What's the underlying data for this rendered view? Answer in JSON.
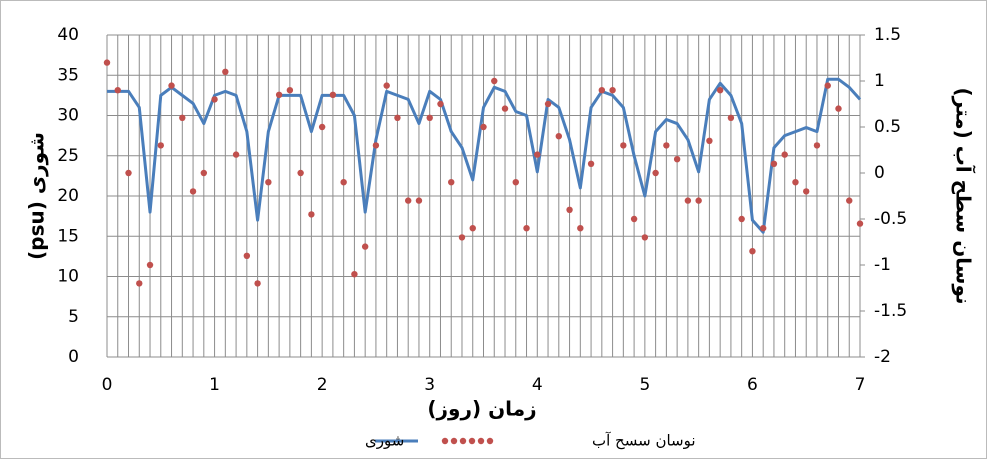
{
  "chart_data": {
    "type": "line",
    "y_label": "شوری (psu)",
    "y2_label": "نوسان سطح آب (متر)",
    "x_label": "زمان (روز)",
    "x": [
      0,
      0.1,
      0.2,
      0.3,
      0.4,
      0.5,
      0.6,
      0.7,
      0.8,
      0.9,
      1,
      1.1,
      1.2,
      1.3,
      1.4,
      1.5,
      1.6,
      1.7,
      1.8,
      1.9,
      2,
      2.1,
      2.2,
      2.3,
      2.4,
      2.5,
      2.6,
      2.7,
      2.8,
      2.9,
      3,
      3.1,
      3.2,
      3.3,
      3.4,
      3.5,
      3.6,
      3.7,
      3.8,
      3.9,
      4,
      4.1,
      4.2,
      4.3,
      4.4,
      4.5,
      4.6,
      4.7,
      4.8,
      4.9,
      5,
      5.1,
      5.2,
      5.3,
      5.4,
      5.5,
      5.6,
      5.7,
      5.8,
      5.9,
      6,
      6.1,
      6.2,
      6.3,
      6.4,
      6.5,
      6.6,
      6.7,
      6.8,
      6.9,
      7
    ],
    "series": [
      {
        "name": "شوری",
        "color": "#4a7ebb",
        "style": "line",
        "values": [
          33,
          33,
          33,
          31,
          18,
          32.5,
          33.5,
          32.5,
          31.5,
          29,
          32.5,
          33,
          32.5,
          28,
          17,
          28,
          32.5,
          32.5,
          32.5,
          28,
          32.5,
          32.5,
          32.5,
          30,
          18,
          27,
          33,
          32.5,
          32,
          29,
          33,
          32,
          28,
          26,
          22,
          31,
          33.5,
          33,
          30.5,
          30,
          23,
          32,
          31,
          27,
          21,
          31,
          33,
          32.5,
          31,
          25,
          20,
          28,
          29.5,
          29,
          27,
          23,
          32,
          34,
          32.5,
          29,
          17,
          15.5,
          26,
          27.5,
          28,
          28.5,
          28,
          34.5,
          34.5,
          33.5,
          32
        ]
      },
      {
        "name": "نوسان سسح آب",
        "color": "#c0504d",
        "style": "dots",
        "axis": "y2",
        "values": [
          1.2,
          0.9,
          0,
          -1.2,
          -1,
          0.3,
          0.95,
          0.6,
          -0.2,
          0,
          0.8,
          1.1,
          0.2,
          -0.9,
          -1.2,
          -0.1,
          0.85,
          0.9,
          0,
          -0.45,
          0.5,
          0.85,
          -0.1,
          -1.1,
          -0.8,
          0.3,
          0.95,
          0.6,
          -0.3,
          -0.3,
          0.6,
          0.75,
          -0.1,
          -0.7,
          -0.6,
          0.5,
          1,
          0.7,
          -0.1,
          -0.6,
          0.2,
          0.75,
          0.4,
          -0.4,
          -0.6,
          0.1,
          0.9,
          0.9,
          0.3,
          -0.5,
          -0.7,
          0,
          0.3,
          0.15,
          -0.3,
          -0.3,
          0.35,
          0.9,
          0.6,
          -0.5,
          -0.85,
          -0.6,
          0.1,
          0.2,
          -0.1,
          -0.2,
          0.3,
          0.95,
          0.7,
          -0.3,
          -0.55
        ]
      }
    ],
    "xlim": [
      0,
      7
    ],
    "xticks": [
      0,
      1,
      2,
      3,
      4,
      5,
      6,
      7
    ],
    "ylim": [
      0,
      40
    ],
    "yticks": [
      0,
      5,
      10,
      15,
      20,
      25,
      30,
      35,
      40
    ],
    "y2lim": [
      -2,
      1.5
    ],
    "y2ticks": [
      -2,
      -1.5,
      -1,
      -0.5,
      0,
      0.5,
      1,
      1.5
    ],
    "grid": true,
    "legend": "bottom"
  }
}
